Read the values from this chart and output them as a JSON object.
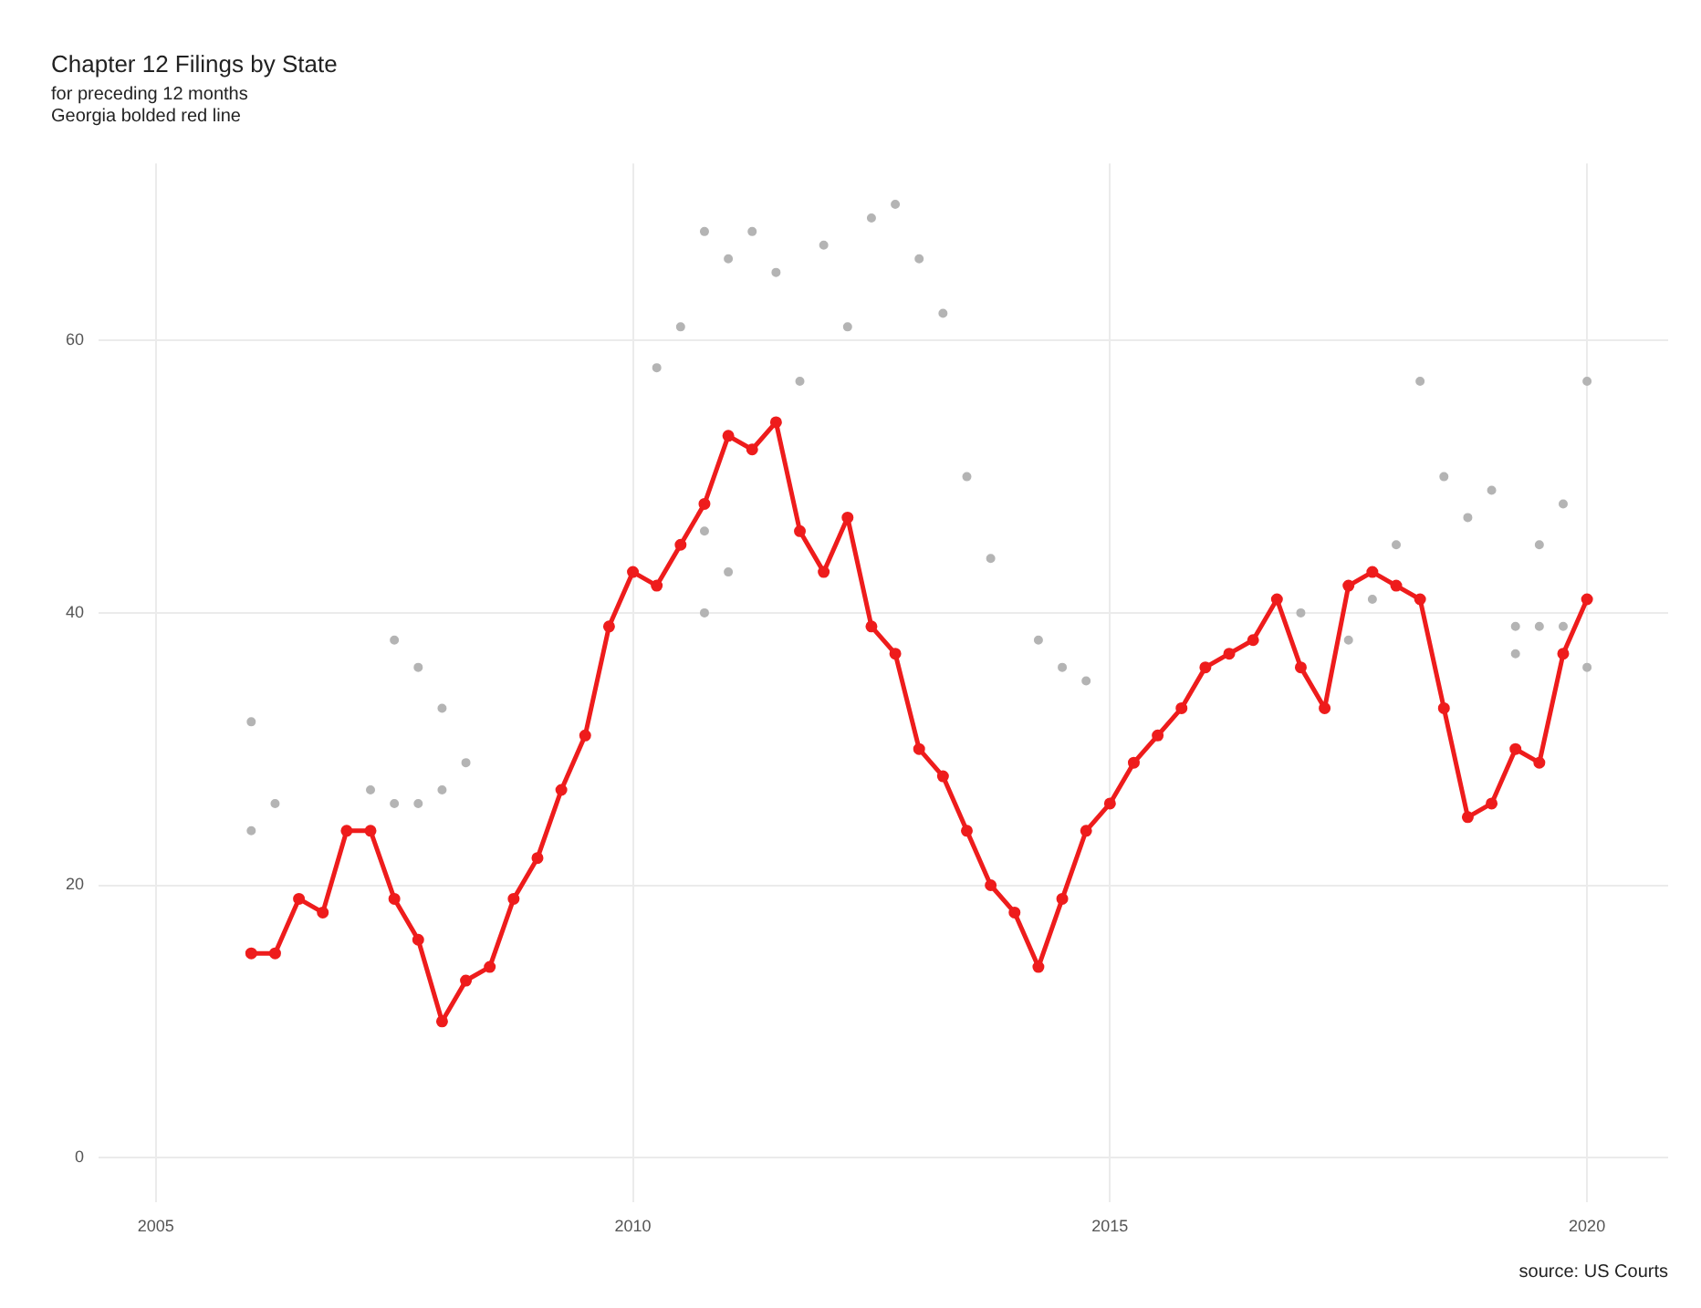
{
  "chart_data": {
    "type": "scatter",
    "title": "Chapter 12 Filings by State",
    "subtitle": "for preceding 12 months\nGeorgia bolded red line",
    "xlim": [
      2004.4,
      2020.85
    ],
    "xticks": [
      2005,
      2010,
      2015,
      2020
    ],
    "ylim": [
      -3.3,
      73
    ],
    "yticks": [
      0,
      20,
      40,
      60
    ],
    "grid": true,
    "marker": "circle",
    "annotations": [
      "source: US Courts"
    ],
    "series": [
      {
        "type": "scatter",
        "color": "#b4b4b4",
        "x": [
          2010.75,
          2011.25,
          2011.0,
          2011.5,
          2010.5,
          2010.25,
          2012.0,
          2012.5,
          2012.75,
          2013.0,
          2012.25,
          2013.25,
          2011.75,
          2013.5,
          2013.75,
          2014.25,
          2010.75,
          2011.0,
          2010.75,
          2006.0,
          2007.5,
          2007.75,
          2008.0,
          2008.25,
          2006.25,
          2007.25,
          2007.5,
          2007.75,
          2008.0,
          2006.0,
          2018.25,
          2018.5,
          2019.0,
          2018.75,
          2019.75,
          2019.5,
          2020.0,
          2018.0,
          2017.75,
          2017.0,
          2019.25,
          2019.5,
          2019.75,
          2019.25,
          2020.0,
          2017.5,
          2014.5,
          2014.75
        ],
        "values": [
          68,
          68,
          66,
          65,
          61,
          58,
          67,
          69,
          70,
          66,
          61,
          62,
          57,
          50,
          44,
          38,
          46,
          43,
          40,
          32,
          38,
          36,
          33,
          29,
          26,
          27,
          26,
          26,
          27,
          24,
          57,
          50,
          49,
          47,
          48,
          45,
          57,
          45,
          41,
          40,
          39,
          39,
          39,
          37,
          36,
          38,
          36,
          35
        ]
      },
      {
        "type": "line",
        "color": "#ee1c1c",
        "x": [
          2006.0,
          2006.25,
          2006.5,
          2006.75,
          2007.0,
          2007.25,
          2007.5,
          2007.75,
          2008.0,
          2008.25,
          2008.5,
          2008.75,
          2009.0,
          2009.25,
          2009.5,
          2009.75,
          2010.0,
          2010.25,
          2010.5,
          2010.75,
          2011.0,
          2011.25,
          2011.5,
          2011.75,
          2012.0,
          2012.25,
          2012.5,
          2012.75,
          2013.0,
          2013.25,
          2013.5,
          2013.75,
          2014.0,
          2014.25,
          2014.5,
          2014.75,
          2015.0,
          2015.25,
          2015.5,
          2015.75,
          2016.0,
          2016.25,
          2016.5,
          2016.75,
          2017.0,
          2017.25,
          2017.5,
          2017.75,
          2018.0,
          2018.25,
          2018.5,
          2018.75,
          2019.0,
          2019.25,
          2019.5,
          2019.75,
          2020.0
        ],
        "values": [
          15,
          15,
          19,
          18,
          24,
          24,
          19,
          16,
          10,
          13,
          14,
          19,
          22,
          27,
          31,
          39,
          43,
          42,
          45,
          48,
          53,
          52,
          54,
          46,
          43,
          47,
          39,
          37,
          30,
          28,
          24,
          20,
          18,
          14,
          19,
          24,
          26,
          29,
          31,
          33,
          36,
          37,
          38,
          41,
          36,
          33,
          42,
          43,
          42,
          41,
          33,
          25,
          26,
          30,
          29,
          37,
          41
        ]
      }
    ]
  }
}
